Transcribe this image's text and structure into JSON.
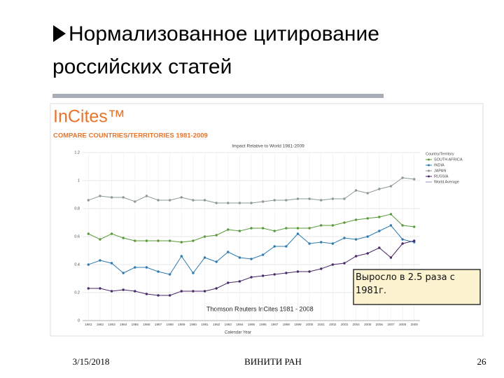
{
  "slide": {
    "title_lines": [
      "Нормализованное цитирование",
      "российских статей"
    ],
    "footer_date": "3/15/2018",
    "footer_org": "ВИНИТИ РАН",
    "page_number": "26"
  },
  "chart_data": {
    "type": "line",
    "brand": "InCites™",
    "header": "COMPARE COUNTRIES/TERRITORIES 1981-2009",
    "title": "Impact Relative to World 1981-2009",
    "x_label": "Calendar Year",
    "source": "Thomson Reuters InCites 1981 - 2008",
    "annotation": "Выросло в 2.5 раза с 1981г.",
    "legend_title": "Country/Territory",
    "reference": {
      "name": "World Average",
      "color": "#9c8fc8"
    },
    "categories": [
      "1981",
      "1982",
      "1983",
      "1984",
      "1985",
      "1986",
      "1987",
      "1988",
      "1989",
      "1990",
      "1991",
      "1992",
      "1993",
      "1994",
      "1995",
      "1996",
      "1997",
      "1998",
      "1999",
      "2000",
      "2001",
      "2002",
      "2003",
      "2004",
      "2005",
      "2006",
      "2007",
      "2008",
      "2009"
    ],
    "series": [
      {
        "name": "SOUTH AFRICA",
        "color": "#5a9a3a",
        "values": [
          0.62,
          0.58,
          0.62,
          0.59,
          0.57,
          0.57,
          0.57,
          0.57,
          0.56,
          0.57,
          0.6,
          0.61,
          0.65,
          0.64,
          0.66,
          0.66,
          0.64,
          0.66,
          0.66,
          0.66,
          0.68,
          0.68,
          0.7,
          0.72,
          0.73,
          0.74,
          0.76,
          0.68,
          0.67
        ]
      },
      {
        "name": "INDIA",
        "color": "#2f7bb0",
        "values": [
          0.4,
          0.43,
          0.41,
          0.34,
          0.38,
          0.38,
          0.35,
          0.33,
          0.46,
          0.34,
          0.45,
          0.42,
          0.49,
          0.45,
          0.44,
          0.47,
          0.53,
          0.53,
          0.62,
          0.55,
          0.56,
          0.55,
          0.59,
          0.58,
          0.6,
          0.64,
          0.68,
          0.58,
          0.56
        ]
      },
      {
        "name": "JAPAN",
        "color": "#8c9a90",
        "values": [
          0.86,
          0.89,
          0.88,
          0.88,
          0.85,
          0.89,
          0.86,
          0.86,
          0.88,
          0.86,
          0.86,
          0.84,
          0.84,
          0.84,
          0.84,
          0.85,
          0.86,
          0.86,
          0.87,
          0.87,
          0.86,
          0.87,
          0.87,
          0.93,
          0.91,
          0.94,
          0.96,
          1.02,
          1.01
        ]
      },
      {
        "name": "RUSSIA",
        "color": "#4a2a6a",
        "values": [
          0.23,
          0.23,
          0.21,
          0.22,
          0.21,
          0.19,
          0.18,
          0.18,
          0.21,
          0.21,
          0.21,
          0.23,
          0.27,
          0.28,
          0.31,
          0.32,
          0.33,
          0.34,
          0.35,
          0.35,
          0.37,
          0.4,
          0.41,
          0.46,
          0.48,
          0.52,
          0.45,
          0.55,
          0.57
        ]
      }
    ],
    "ylim": [
      0,
      1.2
    ],
    "yticks": [
      0,
      0.2,
      0.4,
      0.6,
      0.8,
      1,
      1.2
    ],
    "grid": true
  }
}
